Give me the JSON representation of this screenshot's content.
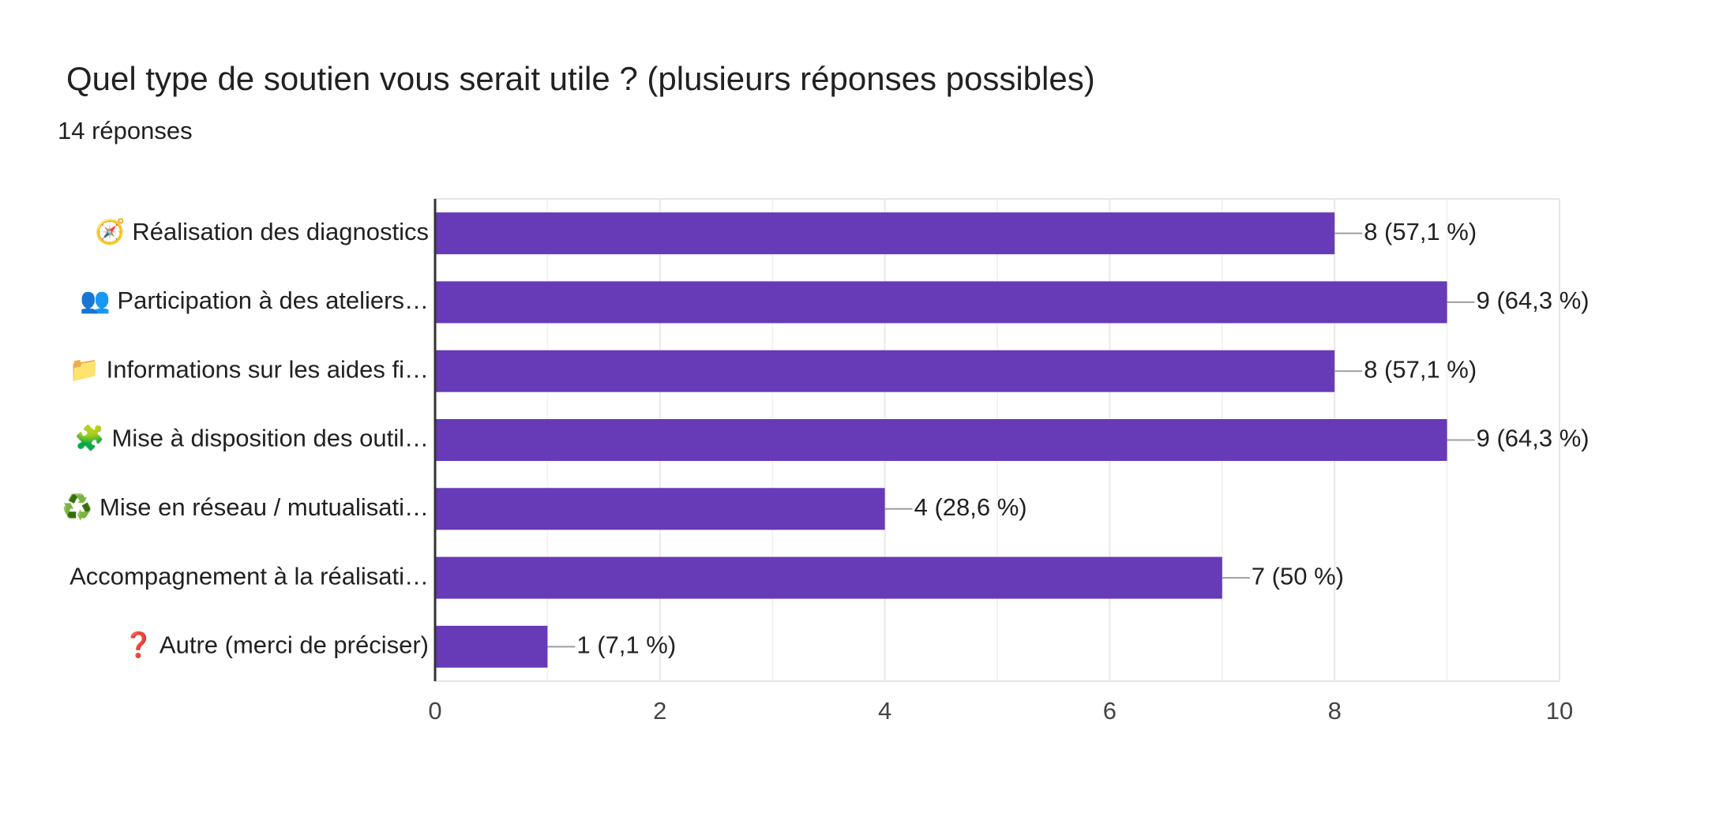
{
  "chart_data": {
    "type": "hbar",
    "title": "Quel type de soutien vous serait utile ? (plusieurs réponses possibles)",
    "subtitle": "14 réponses",
    "categories": [
      "🧭 Réalisation des diagnostics",
      "👥 Participation à des ateliers…",
      "📁 Informations sur les aides fi…",
      "🧩 Mise à disposition des outil…",
      "♻️ Mise en réseau / mutualisati…",
      "Accompagnement à la réalisati…",
      "❓ Autre (merci de préciser)"
    ],
    "values": [
      8,
      9,
      8,
      9,
      4,
      7,
      1
    ],
    "value_labels": [
      "8 (57,1 %)",
      "9 (64,3 %)",
      "8 (57,1 %)",
      "9 (64,3 %)",
      "4 (28,6 %)",
      "7 (50 %)",
      "1 (7,1 %)"
    ],
    "color": "#673ab7",
    "xlim": [
      0,
      10
    ],
    "xticks": [
      0,
      2,
      4,
      6,
      8,
      10
    ],
    "grid": true
  }
}
